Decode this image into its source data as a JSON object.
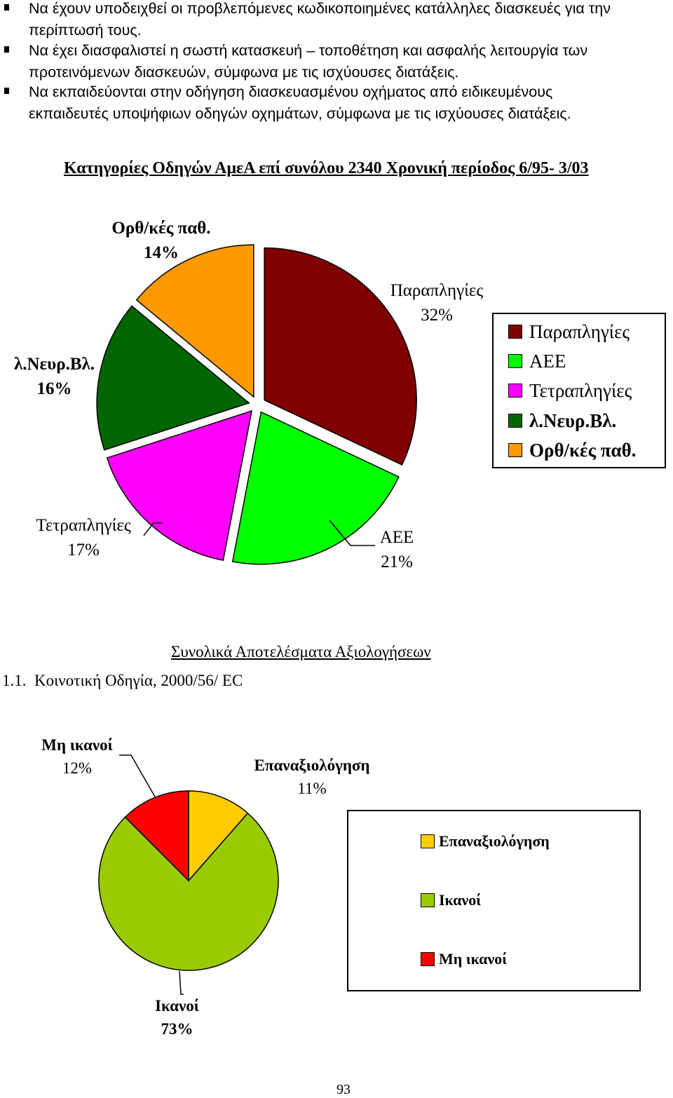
{
  "bullets": [
    {
      "lines": [
        "Να έχουν υποδειχθεί οι προβλεπόμενες κωδικοποιημένες κατάλληλες διασκευές για την",
        "περίπτωσή τους."
      ]
    },
    {
      "lines": [
        "Να έχει διασφαλιστεί η σωστή κατασκευή – τοποθέτηση και ασφαλής λειτουργία των",
        "προτεινόμενων διασκευών, σύμφωνα με τις ισχύουσες διατάξεις."
      ]
    },
    {
      "lines": [
        "Να εκπαιδεύονται στην οδήγηση διασκευασμένου οχήματος από ειδικευμένους",
        "εκπαιδευτές υποψήφιων οδηγών οχημάτων, σύμφωνα με τις ισχύουσες διατάξεις."
      ]
    }
  ],
  "section_title": "Συνολικά Αποτελέσματα Αξιολογήσεων",
  "subheading": "1.1.  Κοινοτική Οδηγία, 2000/56/ EC",
  "page_number": "93",
  "chart_data": [
    {
      "type": "pie",
      "title": "Κατηγορίες Οδηγών ΑμεΑ επί συνόλου 2340 Χρονική περίοδος 6/95- 3/03",
      "slices": [
        {
          "label": "Παραπληγίες",
          "value": 32,
          "value_label": "32%",
          "color": "#800000"
        },
        {
          "label": "ΑΕΕ",
          "value": 21,
          "value_label": "21%",
          "color": "#00ff00"
        },
        {
          "label": "Τετραπληγίες",
          "value": 17,
          "value_label": "17%",
          "color": "#ff00ff"
        },
        {
          "label": "λ.Νευρ.Βλ.",
          "value": 16,
          "value_label": "16%",
          "color": "#006600"
        },
        {
          "label": "Ορθ/κές παθ.",
          "value": 14,
          "value_label": "14%",
          "color": "#ff9900"
        }
      ],
      "legend": [
        "Παραπληγίες",
        "ΑΕΕ",
        "Τετραπληγίες",
        "λ.Νευρ.Βλ.",
        "Ορθ/κές παθ."
      ],
      "legend_position": "right",
      "exploded": true
    },
    {
      "type": "pie",
      "title": "",
      "slices": [
        {
          "label": "Επαναξιολόγηση",
          "value": 11,
          "value_label": "11%",
          "color": "#ffcc00"
        },
        {
          "label": "Ικανοί",
          "value": 73,
          "value_label": "73%",
          "color": "#99cc00"
        },
        {
          "label": "Μη ικανοί",
          "value": 12,
          "value_label": "12%",
          "color": "#ff0000"
        }
      ],
      "legend": [
        "Επαναξιολόγηση",
        "Ικανοί",
        "Μη ικανοί"
      ],
      "legend_position": "right"
    }
  ]
}
